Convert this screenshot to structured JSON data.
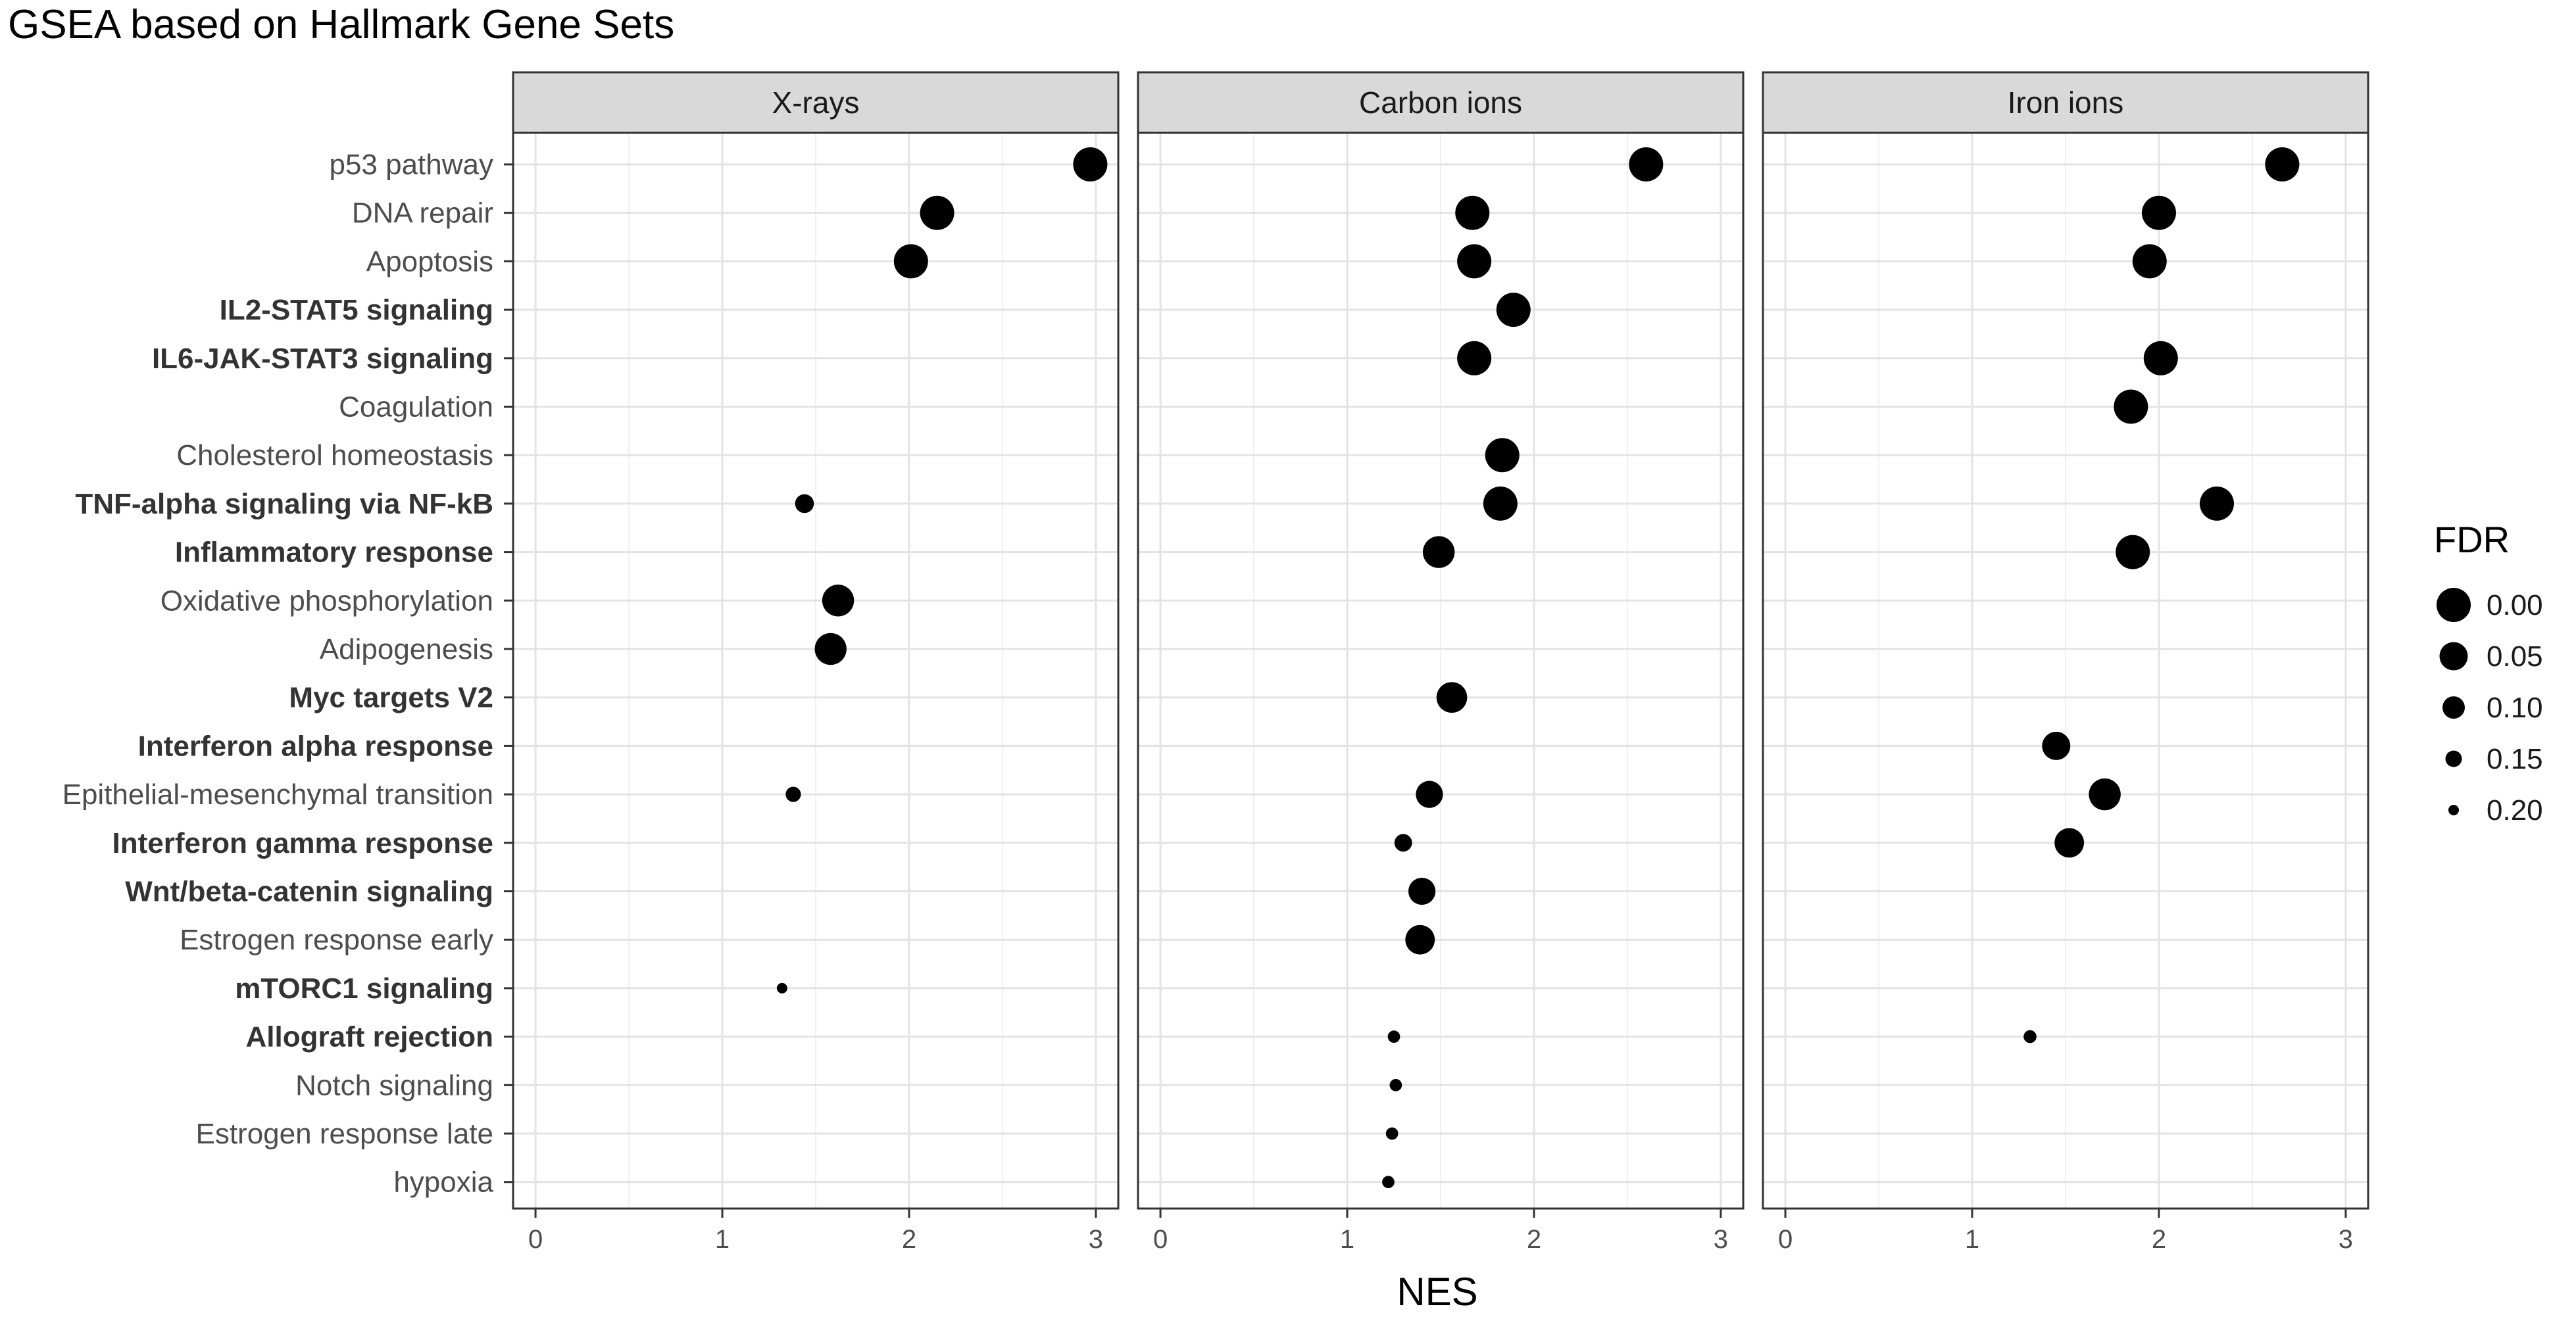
{
  "chart_data": {
    "type": "scatter",
    "title": "GSEA based on Hallmark Gene Sets",
    "xlabel": "NES",
    "ylabel": "",
    "xlim": [
      -0.12,
      3.12
    ],
    "xticks": [
      "0",
      "1",
      "2",
      "3"
    ],
    "grid": true,
    "legend": {
      "title": "FDR",
      "position": "right",
      "labels": [
        "0.00",
        "0.05",
        "0.10",
        "0.15",
        "0.20"
      ],
      "values": [
        0.0,
        0.05,
        0.1,
        0.15,
        0.2
      ]
    },
    "categories": [
      {
        "label": "p53 pathway",
        "bold": false
      },
      {
        "label": "DNA repair",
        "bold": false
      },
      {
        "label": "Apoptosis",
        "bold": false
      },
      {
        "label": "IL2-STAT5 signaling",
        "bold": true
      },
      {
        "label": "IL6-JAK-STAT3 signaling",
        "bold": true
      },
      {
        "label": "Coagulation",
        "bold": false
      },
      {
        "label": "Cholesterol homeostasis",
        "bold": false
      },
      {
        "label": "TNF-alpha signaling via NF-kB",
        "bold": true
      },
      {
        "label": "Inflammatory response",
        "bold": true
      },
      {
        "label": "Oxidative phosphorylation",
        "bold": false
      },
      {
        "label": "Adipogenesis",
        "bold": false
      },
      {
        "label": "Myc targets V2",
        "bold": true
      },
      {
        "label": "Interferon alpha response",
        "bold": true
      },
      {
        "label": "Epithelial-mesenchymal transition",
        "bold": false
      },
      {
        "label": "Interferon gamma response",
        "bold": true
      },
      {
        "label": "Wnt/beta-catenin signaling",
        "bold": true
      },
      {
        "label": "Estrogen response early",
        "bold": false
      },
      {
        "label": "mTORC1 signaling",
        "bold": true
      },
      {
        "label": "Allograft rejection",
        "bold": true
      },
      {
        "label": "Notch signaling",
        "bold": false
      },
      {
        "label": "Estrogen response late",
        "bold": false
      },
      {
        "label": "hypoxia",
        "bold": false
      }
    ],
    "facets": [
      {
        "name": "X-rays",
        "points": [
          {
            "category": "p53 pathway",
            "nes": 2.97,
            "fdr": 0.0
          },
          {
            "category": "DNA repair",
            "nes": 2.15,
            "fdr": 0.0
          },
          {
            "category": "Apoptosis",
            "nes": 2.01,
            "fdr": 0.0
          },
          {
            "category": "TNF-alpha signaling via NF-kB",
            "nes": 1.44,
            "fdr": 0.13
          },
          {
            "category": "Oxidative phosphorylation",
            "nes": 1.62,
            "fdr": 0.02
          },
          {
            "category": "Adipogenesis",
            "nes": 1.58,
            "fdr": 0.02
          },
          {
            "category": "Epithelial-mesenchymal transition",
            "nes": 1.38,
            "fdr": 0.16
          },
          {
            "category": "mTORC1 signaling",
            "nes": 1.32,
            "fdr": 0.2
          }
        ]
      },
      {
        "name": "Carbon ions",
        "points": [
          {
            "category": "p53 pathway",
            "nes": 2.6,
            "fdr": 0.0
          },
          {
            "category": "DNA repair",
            "nes": 1.67,
            "fdr": 0.0
          },
          {
            "category": "Apoptosis",
            "nes": 1.68,
            "fdr": 0.0
          },
          {
            "category": "IL2-STAT5 signaling",
            "nes": 1.89,
            "fdr": 0.0
          },
          {
            "category": "IL6-JAK-STAT3 signaling",
            "nes": 1.68,
            "fdr": 0.0
          },
          {
            "category": "Cholesterol homeostasis",
            "nes": 1.83,
            "fdr": 0.0
          },
          {
            "category": "TNF-alpha signaling via NF-kB",
            "nes": 1.82,
            "fdr": 0.0
          },
          {
            "category": "Inflammatory response",
            "nes": 1.49,
            "fdr": 0.02
          },
          {
            "category": "Myc targets V2",
            "nes": 1.56,
            "fdr": 0.03
          },
          {
            "category": "Epithelial-mesenchymal transition",
            "nes": 1.44,
            "fdr": 0.06
          },
          {
            "category": "Interferon gamma response",
            "nes": 1.3,
            "fdr": 0.14
          },
          {
            "category": "Wnt/beta-catenin signaling",
            "nes": 1.4,
            "fdr": 0.06
          },
          {
            "category": "Estrogen response early",
            "nes": 1.39,
            "fdr": 0.04
          },
          {
            "category": "Allograft rejection",
            "nes": 1.25,
            "fdr": 0.185
          },
          {
            "category": "Notch signaling",
            "nes": 1.26,
            "fdr": 0.185
          },
          {
            "category": "Estrogen response late",
            "nes": 1.24,
            "fdr": 0.185
          },
          {
            "category": "hypoxia",
            "nes": 1.22,
            "fdr": 0.185
          }
        ]
      },
      {
        "name": "Iron ions",
        "points": [
          {
            "category": "p53 pathway",
            "nes": 2.66,
            "fdr": 0.0
          },
          {
            "category": "DNA repair",
            "nes": 2.0,
            "fdr": 0.0
          },
          {
            "category": "Apoptosis",
            "nes": 1.95,
            "fdr": 0.0
          },
          {
            "category": "IL6-JAK-STAT3 signaling",
            "nes": 2.01,
            "fdr": 0.0
          },
          {
            "category": "Coagulation",
            "nes": 1.85,
            "fdr": 0.0
          },
          {
            "category": "TNF-alpha signaling via NF-kB",
            "nes": 2.31,
            "fdr": 0.0
          },
          {
            "category": "Inflammatory response",
            "nes": 1.86,
            "fdr": 0.0
          },
          {
            "category": "Interferon alpha response",
            "nes": 1.45,
            "fdr": 0.05
          },
          {
            "category": "Epithelial-mesenchymal transition",
            "nes": 1.71,
            "fdr": 0.02
          },
          {
            "category": "Interferon gamma response",
            "nes": 1.52,
            "fdr": 0.04
          },
          {
            "category": "Allograft rejection",
            "nes": 1.31,
            "fdr": 0.18
          }
        ]
      }
    ]
  }
}
